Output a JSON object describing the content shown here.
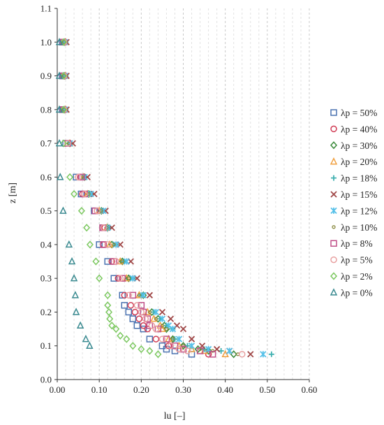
{
  "chart_data": {
    "type": "scatter",
    "title": "",
    "xlabel": "lu [–]",
    "ylabel": "z [m]",
    "xlim": [
      0,
      0.6
    ],
    "ylim": [
      0,
      1.1
    ],
    "xticks": [
      "0.00",
      "0.10",
      "0.20",
      "0.30",
      "0.40",
      "0.50",
      "0.60"
    ],
    "yticks": [
      "0.0",
      "0.1",
      "0.2",
      "0.3",
      "0.4",
      "0.5",
      "0.6",
      "0.7",
      "0.8",
      "0.9",
      "1.0",
      "1.1"
    ],
    "grid": "vertical-dashed",
    "legend_position": "right",
    "series": [
      {
        "name": "λp = 50%",
        "marker": "square",
        "color": "#4a72b0",
        "points": [
          [
            0.012,
            1.0
          ],
          [
            0.012,
            0.9
          ],
          [
            0.012,
            0.8
          ],
          [
            0.02,
            0.7
          ],
          [
            0.045,
            0.6
          ],
          [
            0.057,
            0.55
          ],
          [
            0.088,
            0.5
          ],
          [
            0.11,
            0.45
          ],
          [
            0.1,
            0.4
          ],
          [
            0.12,
            0.35
          ],
          [
            0.135,
            0.3
          ],
          [
            0.155,
            0.25
          ],
          [
            0.16,
            0.22
          ],
          [
            0.17,
            0.2
          ],
          [
            0.18,
            0.18
          ],
          [
            0.19,
            0.16
          ],
          [
            0.205,
            0.15
          ],
          [
            0.22,
            0.12
          ],
          [
            0.25,
            0.1
          ],
          [
            0.26,
            0.09
          ],
          [
            0.28,
            0.085
          ],
          [
            0.32,
            0.075
          ]
        ]
      },
      {
        "name": "λp = 40%",
        "marker": "circle",
        "color": "#d03b54",
        "points": [
          [
            0.014,
            1.0
          ],
          [
            0.014,
            0.9
          ],
          [
            0.014,
            0.8
          ],
          [
            0.025,
            0.7
          ],
          [
            0.055,
            0.6
          ],
          [
            0.06,
            0.55
          ],
          [
            0.095,
            0.5
          ],
          [
            0.113,
            0.45
          ],
          [
            0.11,
            0.4
          ],
          [
            0.13,
            0.35
          ],
          [
            0.145,
            0.3
          ],
          [
            0.16,
            0.25
          ],
          [
            0.175,
            0.22
          ],
          [
            0.185,
            0.2
          ],
          [
            0.195,
            0.18
          ],
          [
            0.205,
            0.16
          ],
          [
            0.215,
            0.15
          ],
          [
            0.235,
            0.12
          ],
          [
            0.265,
            0.1
          ],
          [
            0.29,
            0.09
          ],
          [
            0.36,
            0.075
          ]
        ]
      },
      {
        "name": "λp = 30%",
        "marker": "diamond",
        "color": "#3a8a3a",
        "points": [
          [
            0.018,
            1.0
          ],
          [
            0.018,
            0.9
          ],
          [
            0.018,
            0.8
          ],
          [
            0.03,
            0.7
          ],
          [
            0.065,
            0.6
          ],
          [
            0.075,
            0.55
          ],
          [
            0.105,
            0.5
          ],
          [
            0.12,
            0.45
          ],
          [
            0.13,
            0.4
          ],
          [
            0.155,
            0.35
          ],
          [
            0.17,
            0.3
          ],
          [
            0.205,
            0.25
          ],
          [
            0.225,
            0.2
          ],
          [
            0.24,
            0.18
          ],
          [
            0.255,
            0.16
          ],
          [
            0.26,
            0.15
          ],
          [
            0.275,
            0.12
          ],
          [
            0.3,
            0.1
          ],
          [
            0.335,
            0.09
          ],
          [
            0.36,
            0.085
          ],
          [
            0.42,
            0.075
          ]
        ]
      },
      {
        "name": "λp = 20%",
        "marker": "triangle",
        "color": "#f0a040",
        "points": [
          [
            0.02,
            1.0
          ],
          [
            0.02,
            0.9
          ],
          [
            0.02,
            0.8
          ],
          [
            0.03,
            0.7
          ],
          [
            0.062,
            0.6
          ],
          [
            0.072,
            0.55
          ],
          [
            0.1,
            0.5
          ],
          [
            0.118,
            0.45
          ],
          [
            0.125,
            0.4
          ],
          [
            0.15,
            0.35
          ],
          [
            0.165,
            0.3
          ],
          [
            0.195,
            0.25
          ],
          [
            0.215,
            0.2
          ],
          [
            0.23,
            0.18
          ],
          [
            0.245,
            0.16
          ],
          [
            0.25,
            0.15
          ],
          [
            0.265,
            0.12
          ],
          [
            0.29,
            0.1
          ],
          [
            0.32,
            0.09
          ],
          [
            0.35,
            0.085
          ],
          [
            0.4,
            0.075
          ]
        ]
      },
      {
        "name": "λp = 18%",
        "marker": "plus",
        "color": "#40b0b0",
        "points": [
          [
            0.02,
            1.0
          ],
          [
            0.02,
            0.9
          ],
          [
            0.02,
            0.8
          ],
          [
            0.033,
            0.7
          ],
          [
            0.068,
            0.6
          ],
          [
            0.08,
            0.55
          ],
          [
            0.11,
            0.5
          ],
          [
            0.125,
            0.45
          ],
          [
            0.14,
            0.4
          ],
          [
            0.16,
            0.35
          ],
          [
            0.18,
            0.3
          ],
          [
            0.2,
            0.25
          ],
          [
            0.23,
            0.2
          ],
          [
            0.245,
            0.18
          ],
          [
            0.26,
            0.16
          ],
          [
            0.275,
            0.15
          ],
          [
            0.28,
            0.12
          ],
          [
            0.31,
            0.1
          ],
          [
            0.35,
            0.09
          ],
          [
            0.39,
            0.085
          ],
          [
            0.51,
            0.075
          ]
        ]
      },
      {
        "name": "λp = 15%",
        "marker": "cross",
        "color": "#a04848",
        "points": [
          [
            0.022,
            1.0
          ],
          [
            0.022,
            0.9
          ],
          [
            0.022,
            0.8
          ],
          [
            0.037,
            0.7
          ],
          [
            0.072,
            0.6
          ],
          [
            0.088,
            0.55
          ],
          [
            0.115,
            0.5
          ],
          [
            0.13,
            0.45
          ],
          [
            0.15,
            0.4
          ],
          [
            0.175,
            0.35
          ],
          [
            0.19,
            0.3
          ],
          [
            0.22,
            0.25
          ],
          [
            0.25,
            0.2
          ],
          [
            0.27,
            0.18
          ],
          [
            0.285,
            0.16
          ],
          [
            0.3,
            0.15
          ],
          [
            0.32,
            0.12
          ],
          [
            0.345,
            0.1
          ],
          [
            0.38,
            0.09
          ],
          [
            0.41,
            0.085
          ],
          [
            0.46,
            0.075
          ]
        ]
      },
      {
        "name": "λp = 12%",
        "marker": "star",
        "color": "#55c0e8",
        "points": [
          [
            0.018,
            1.0
          ],
          [
            0.018,
            0.9
          ],
          [
            0.018,
            0.8
          ],
          [
            0.03,
            0.7
          ],
          [
            0.065,
            0.6
          ],
          [
            0.08,
            0.55
          ],
          [
            0.11,
            0.5
          ],
          [
            0.12,
            0.45
          ],
          [
            0.14,
            0.4
          ],
          [
            0.165,
            0.35
          ],
          [
            0.18,
            0.3
          ],
          [
            0.205,
            0.25
          ],
          [
            0.235,
            0.2
          ],
          [
            0.25,
            0.18
          ],
          [
            0.265,
            0.16
          ],
          [
            0.275,
            0.15
          ],
          [
            0.29,
            0.12
          ],
          [
            0.32,
            0.1
          ],
          [
            0.36,
            0.09
          ],
          [
            0.41,
            0.085
          ],
          [
            0.49,
            0.075
          ]
        ]
      },
      {
        "name": "λp = 10%",
        "marker": "dot",
        "color": "#8a8a40",
        "points": [
          [
            0.016,
            1.0
          ],
          [
            0.016,
            0.9
          ],
          [
            0.016,
            0.8
          ],
          [
            0.028,
            0.7
          ],
          [
            0.06,
            0.6
          ],
          [
            0.075,
            0.55
          ],
          [
            0.105,
            0.5
          ],
          [
            0.118,
            0.45
          ],
          [
            0.135,
            0.4
          ],
          [
            0.155,
            0.35
          ],
          [
            0.17,
            0.3
          ],
          [
            0.195,
            0.25
          ],
          [
            0.22,
            0.2
          ],
          [
            0.235,
            0.18
          ],
          [
            0.25,
            0.16
          ],
          [
            0.26,
            0.15
          ],
          [
            0.275,
            0.12
          ],
          [
            0.3,
            0.1
          ],
          [
            0.34,
            0.09
          ],
          [
            0.37,
            0.085
          ],
          [
            0.43,
            0.075
          ]
        ]
      },
      {
        "name": "λp = 8%",
        "marker": "square",
        "color": "#c05088",
        "points": [
          [
            0.014,
            1.0
          ],
          [
            0.014,
            0.9
          ],
          [
            0.014,
            0.8
          ],
          [
            0.025,
            0.7
          ],
          [
            0.058,
            0.6
          ],
          [
            0.065,
            0.55
          ],
          [
            0.09,
            0.5
          ],
          [
            0.108,
            0.45
          ],
          [
            0.11,
            0.4
          ],
          [
            0.135,
            0.35
          ],
          [
            0.155,
            0.3
          ],
          [
            0.18,
            0.25
          ],
          [
            0.2,
            0.22
          ],
          [
            0.205,
            0.2
          ],
          [
            0.215,
            0.18
          ],
          [
            0.22,
            0.16
          ],
          [
            0.24,
            0.15
          ],
          [
            0.26,
            0.12
          ],
          [
            0.28,
            0.1
          ],
          [
            0.3,
            0.09
          ],
          [
            0.34,
            0.085
          ],
          [
            0.37,
            0.075
          ]
        ]
      },
      {
        "name": "λp = 5%",
        "marker": "circle",
        "color": "#e8a0a0",
        "points": [
          [
            0.016,
            1.0
          ],
          [
            0.016,
            0.9
          ],
          [
            0.016,
            0.8
          ],
          [
            0.025,
            0.7
          ],
          [
            0.05,
            0.6
          ],
          [
            0.065,
            0.55
          ],
          [
            0.095,
            0.5
          ],
          [
            0.11,
            0.45
          ],
          [
            0.12,
            0.4
          ],
          [
            0.14,
            0.35
          ],
          [
            0.15,
            0.3
          ],
          [
            0.17,
            0.25
          ],
          [
            0.19,
            0.22
          ],
          [
            0.2,
            0.2
          ],
          [
            0.21,
            0.18
          ],
          [
            0.225,
            0.16
          ],
          [
            0.235,
            0.15
          ],
          [
            0.25,
            0.12
          ],
          [
            0.27,
            0.1
          ],
          [
            0.29,
            0.09
          ],
          [
            0.31,
            0.085
          ],
          [
            0.44,
            0.075
          ]
        ]
      },
      {
        "name": "λp = 2%",
        "marker": "diamond",
        "color": "#7cc860",
        "points": [
          [
            0.015,
            1.0
          ],
          [
            0.015,
            0.9
          ],
          [
            0.015,
            0.8
          ],
          [
            0.015,
            0.7
          ],
          [
            0.03,
            0.6
          ],
          [
            0.04,
            0.55
          ],
          [
            0.058,
            0.5
          ],
          [
            0.07,
            0.45
          ],
          [
            0.078,
            0.4
          ],
          [
            0.092,
            0.35
          ],
          [
            0.1,
            0.3
          ],
          [
            0.12,
            0.25
          ],
          [
            0.12,
            0.22
          ],
          [
            0.123,
            0.2
          ],
          [
            0.125,
            0.18
          ],
          [
            0.13,
            0.16
          ],
          [
            0.14,
            0.15
          ],
          [
            0.15,
            0.13
          ],
          [
            0.165,
            0.12
          ],
          [
            0.18,
            0.1
          ],
          [
            0.2,
            0.09
          ],
          [
            0.22,
            0.085
          ],
          [
            0.24,
            0.075
          ]
        ]
      },
      {
        "name": "λp = 0%",
        "marker": "triangle",
        "color": "#3a8a90",
        "points": [
          [
            0.005,
            1.0
          ],
          [
            0.005,
            0.9
          ],
          [
            0.005,
            0.8
          ],
          [
            0.005,
            0.7
          ],
          [
            0.007,
            0.6
          ],
          [
            0.014,
            0.5
          ],
          [
            0.028,
            0.4
          ],
          [
            0.035,
            0.35
          ],
          [
            0.04,
            0.3
          ],
          [
            0.043,
            0.25
          ],
          [
            0.045,
            0.2
          ],
          [
            0.055,
            0.16
          ],
          [
            0.068,
            0.12
          ],
          [
            0.077,
            0.1
          ]
        ]
      }
    ]
  }
}
